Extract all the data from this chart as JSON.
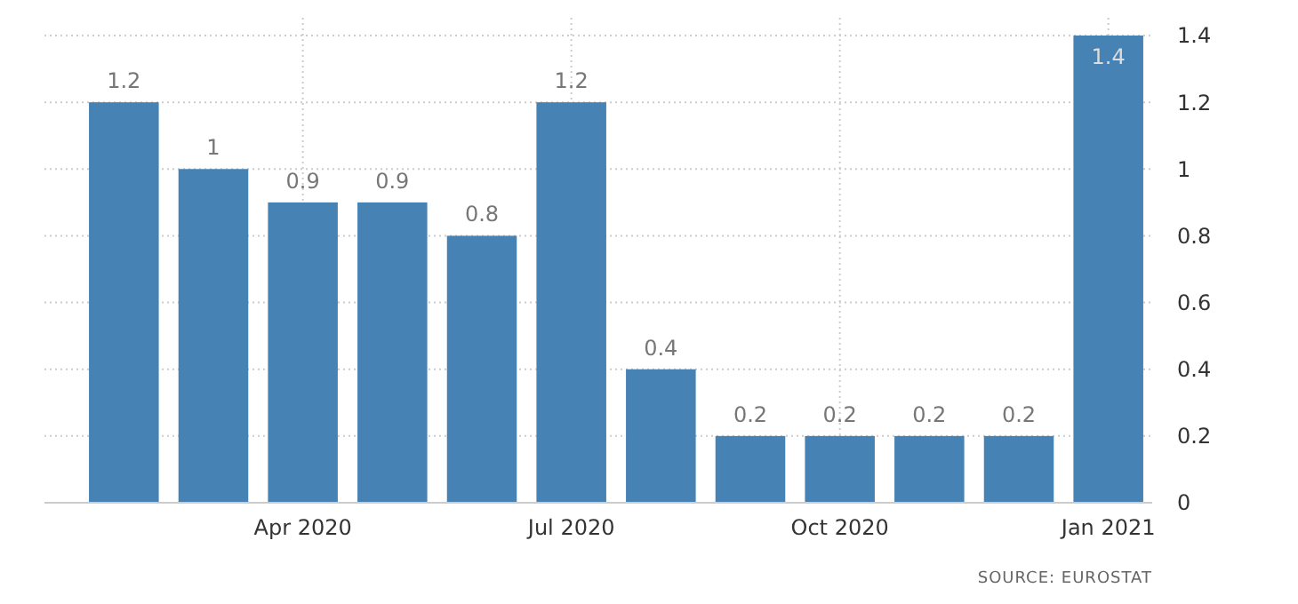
{
  "chart_data": {
    "type": "bar",
    "categories": [
      null,
      null,
      "Apr 2020",
      null,
      null,
      "Jul 2020",
      null,
      null,
      "Oct 2020",
      null,
      null,
      "Jan 2021"
    ],
    "values": [
      1.2,
      1,
      0.9,
      0.9,
      0.8,
      1.2,
      0.4,
      0.2,
      0.2,
      0.2,
      0.2,
      1.4
    ],
    "color": "#4682b4",
    "ylim": [
      0,
      1.4
    ],
    "yticks": [
      0,
      0.2,
      0.4,
      0.6,
      0.8,
      1,
      1.2,
      1.4
    ],
    "grid": true,
    "data_labels": true,
    "annotations": [
      "SOURCE: EUROSTAT"
    ]
  }
}
